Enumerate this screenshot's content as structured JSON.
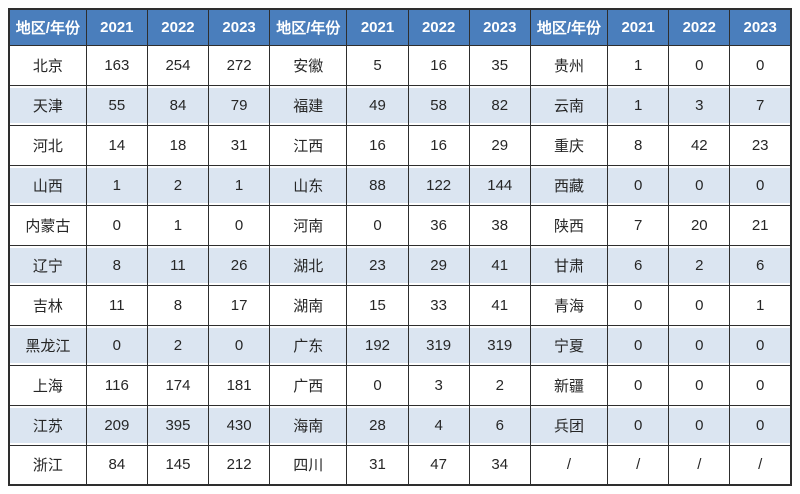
{
  "colors": {
    "header_bg": "#4a7ebc",
    "header_text": "#ffffff",
    "alt_row_bg": "#dbe5f1",
    "border": "#2e2e2e",
    "body_text": "#262626"
  },
  "table": {
    "header": {
      "region_label": "地区/年份",
      "years": [
        "2021",
        "2022",
        "2023"
      ]
    },
    "groups": [
      {
        "rows": [
          {
            "region": "北京",
            "values": [
              "163",
              "254",
              "272"
            ]
          },
          {
            "region": "天津",
            "values": [
              "55",
              "84",
              "79"
            ]
          },
          {
            "region": "河北",
            "values": [
              "14",
              "18",
              "31"
            ]
          },
          {
            "region": "山西",
            "values": [
              "1",
              "2",
              "1"
            ]
          },
          {
            "region": "内蒙古",
            "values": [
              "0",
              "1",
              "0"
            ]
          },
          {
            "region": "辽宁",
            "values": [
              "8",
              "11",
              "26"
            ]
          },
          {
            "region": "吉林",
            "values": [
              "11",
              "8",
              "17"
            ]
          },
          {
            "region": "黑龙江",
            "values": [
              "0",
              "2",
              "0"
            ]
          },
          {
            "region": "上海",
            "values": [
              "116",
              "174",
              "181"
            ]
          },
          {
            "region": "江苏",
            "values": [
              "209",
              "395",
              "430"
            ]
          },
          {
            "region": "浙江",
            "values": [
              "84",
              "145",
              "212"
            ]
          }
        ]
      },
      {
        "rows": [
          {
            "region": "安徽",
            "values": [
              "5",
              "16",
              "35"
            ]
          },
          {
            "region": "福建",
            "values": [
              "49",
              "58",
              "82"
            ]
          },
          {
            "region": "江西",
            "values": [
              "16",
              "16",
              "29"
            ]
          },
          {
            "region": "山东",
            "values": [
              "88",
              "122",
              "144"
            ]
          },
          {
            "region": "河南",
            "values": [
              "0",
              "36",
              "38"
            ]
          },
          {
            "region": "湖北",
            "values": [
              "23",
              "29",
              "41"
            ]
          },
          {
            "region": "湖南",
            "values": [
              "15",
              "33",
              "41"
            ]
          },
          {
            "region": "广东",
            "values": [
              "192",
              "319",
              "319"
            ]
          },
          {
            "region": "广西",
            "values": [
              "0",
              "3",
              "2"
            ]
          },
          {
            "region": "海南",
            "values": [
              "28",
              "4",
              "6"
            ]
          },
          {
            "region": "四川",
            "values": [
              "31",
              "47",
              "34"
            ]
          }
        ]
      },
      {
        "rows": [
          {
            "region": "贵州",
            "values": [
              "1",
              "0",
              "0"
            ]
          },
          {
            "region": "云南",
            "values": [
              "1",
              "3",
              "7"
            ]
          },
          {
            "region": "重庆",
            "values": [
              "8",
              "42",
              "23"
            ]
          },
          {
            "region": "西藏",
            "values": [
              "0",
              "0",
              "0"
            ]
          },
          {
            "region": "陕西",
            "values": [
              "7",
              "20",
              "21"
            ]
          },
          {
            "region": "甘肃",
            "values": [
              "6",
              "2",
              "6"
            ]
          },
          {
            "region": "青海",
            "values": [
              "0",
              "0",
              "1"
            ]
          },
          {
            "region": "宁夏",
            "values": [
              "0",
              "0",
              "0"
            ]
          },
          {
            "region": "新疆",
            "values": [
              "0",
              "0",
              "0"
            ]
          },
          {
            "region": "兵团",
            "values": [
              "0",
              "0",
              "0"
            ]
          },
          {
            "region": "/",
            "values": [
              "/",
              "/",
              "/"
            ]
          }
        ]
      }
    ]
  }
}
